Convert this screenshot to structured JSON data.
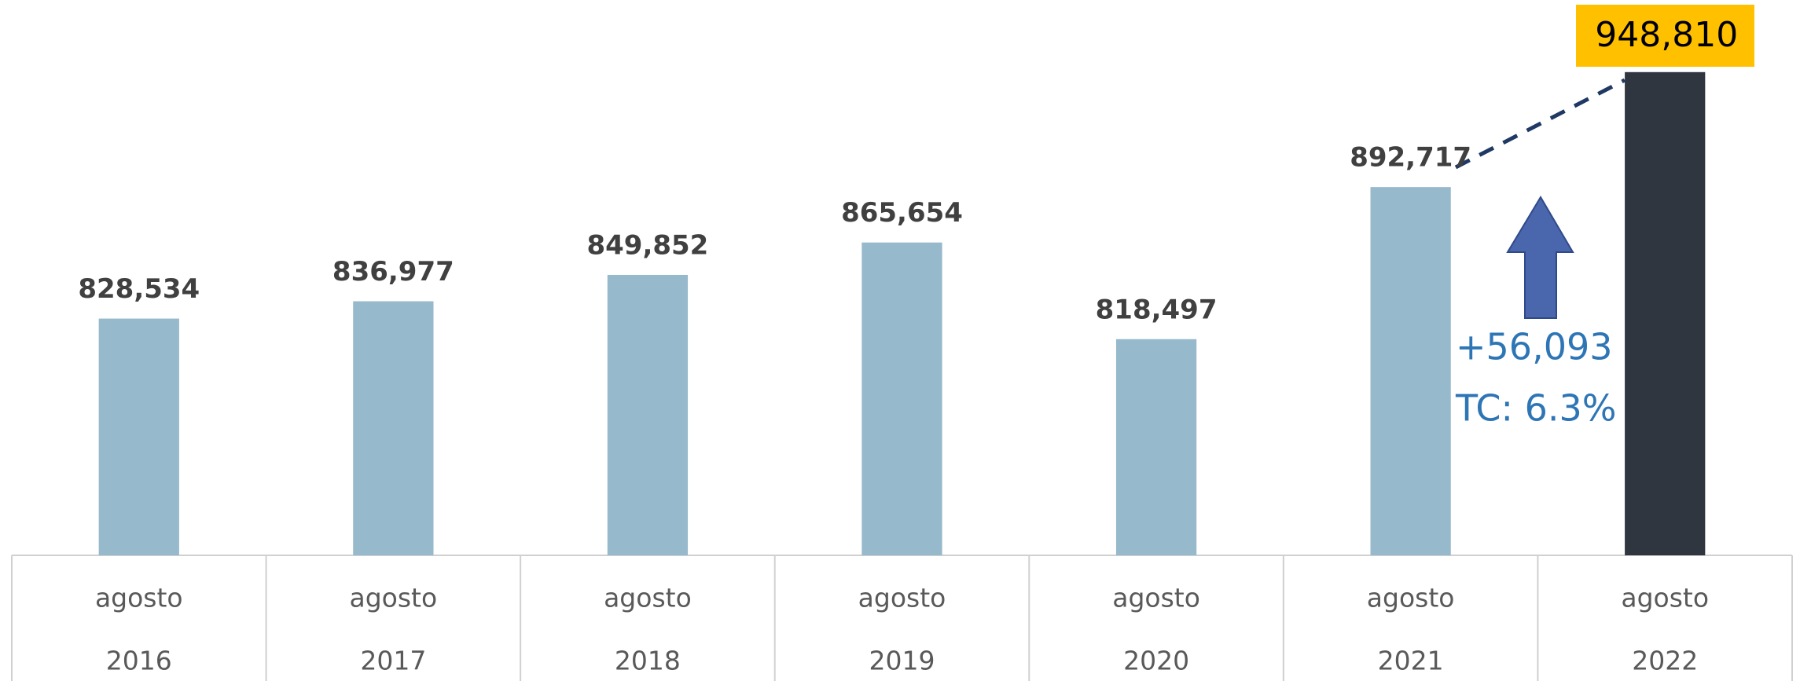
{
  "chart_data": {
    "type": "bar",
    "categories": [
      [
        "agosto",
        "2016"
      ],
      [
        "agosto",
        "2017"
      ],
      [
        "agosto",
        "2018"
      ],
      [
        "agosto",
        "2019"
      ],
      [
        "agosto",
        "2020"
      ],
      [
        "agosto",
        "2021"
      ],
      [
        "agosto",
        "2022"
      ]
    ],
    "values": [
      828534,
      836977,
      849852,
      865654,
      818497,
      892717,
      948810
    ],
    "value_labels": [
      "828,534",
      "836,977",
      "849,852",
      "865,654",
      "818,497",
      "892,717",
      "948,810"
    ],
    "colors": [
      "#97b9cc",
      "#97b9cc",
      "#97b9cc",
      "#97b9cc",
      "#97b9cc",
      "#97b9cc",
      "#2f3640"
    ],
    "highlight_label_color": "#ffc000",
    "ylim": [
      713000,
      984000
    ],
    "annotations": [
      "+56,093",
      "TC: 6.3%"
    ]
  }
}
